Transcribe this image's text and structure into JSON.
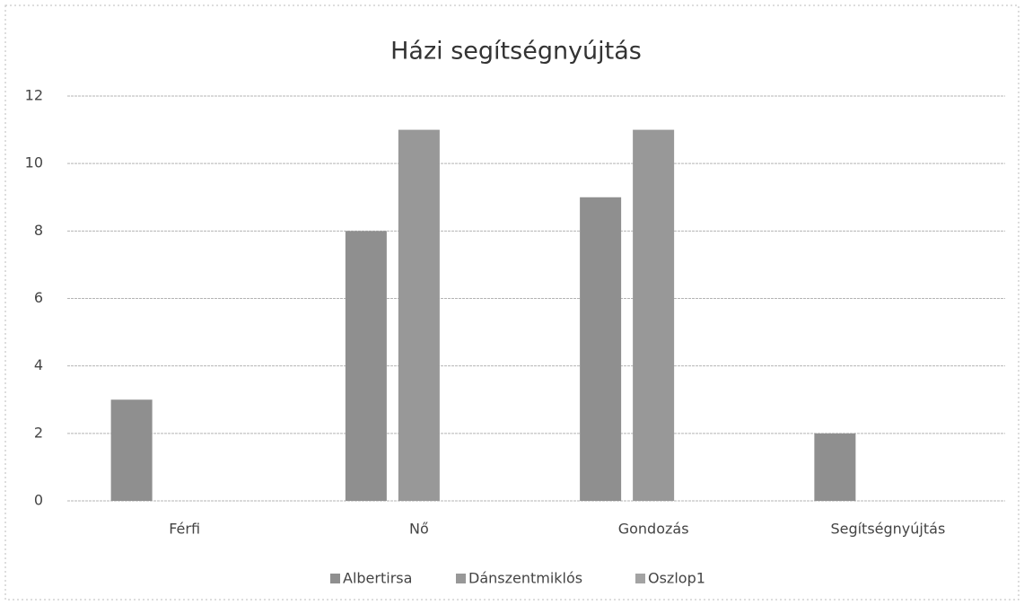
{
  "chart_data": {
    "type": "bar",
    "title": "Házi segítségnyújtás",
    "categories": [
      "Férfi",
      "Nő",
      "Gondozás",
      "Segítségnyújtás"
    ],
    "series": [
      {
        "name": "Albertirsa",
        "color": "#8f8f8f",
        "values": [
          3,
          8,
          9,
          2
        ]
      },
      {
        "name": "Dánszentmiklós",
        "color": "#989898",
        "values": [
          null,
          11,
          11,
          null
        ]
      },
      {
        "name": "Oszlop1",
        "color": "#a3a3a3",
        "values": [
          null,
          null,
          null,
          null
        ]
      }
    ],
    "ylim": [
      0,
      12
    ],
    "yticks": [
      0,
      2,
      4,
      6,
      8,
      10,
      12
    ],
    "grid": true,
    "legend": "bottom"
  }
}
